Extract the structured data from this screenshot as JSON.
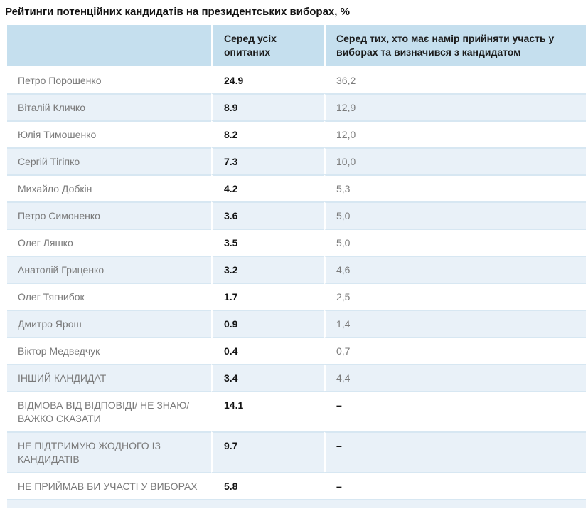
{
  "page": {
    "title": "Рейтинги потенційних кандидатів на президентських виборах, %"
  },
  "chart_data": {
    "type": "table",
    "title": "Рейтинги потенційних кандидатів на президентських виборах, %",
    "columns": [
      "",
      "Серед усіх опитаних",
      "Серед тих, хто має намір прийняти участь у виборах та визначився з кандидатом"
    ],
    "rows": [
      [
        "Петро Порошенко",
        "24.9",
        "36,2"
      ],
      [
        "Віталій Кличко",
        "8.9",
        "12,9"
      ],
      [
        "Юлія Тимошенко",
        "8.2",
        "12,0"
      ],
      [
        "Сергій Тігіпко",
        "7.3",
        "10,0"
      ],
      [
        "Михайло Добкін",
        "4.2",
        "5,3"
      ],
      [
        "Петро Симоненко",
        "3.6",
        "5,0"
      ],
      [
        "Олег Ляшко",
        "3.5",
        "5,0"
      ],
      [
        "Анатолій Гриценко",
        "3.2",
        "4,6"
      ],
      [
        "Олег Тягнибок",
        "1.7",
        "2,5"
      ],
      [
        "Дмитро Ярош",
        "0.9",
        "1,4"
      ],
      [
        "Віктор Медведчук",
        "0.4",
        "0,7"
      ],
      [
        "ІНШИЙ КАНДИДАТ",
        "3.4",
        "4,4"
      ],
      [
        "ВІДМОВА ВІД ВІДПОВІДІ/ НЕ ЗНАЮ/ ВАЖКО СКАЗАТИ",
        "14.1",
        "–"
      ],
      [
        "НЕ ПІДТРИМУЮ ЖОДНОГО ІЗ КАНДИДАТІВ",
        "9.7",
        "–"
      ],
      [
        "НЕ ПРИЙМАВ БИ УЧАСТІ У ВИБОРАХ",
        "5.8",
        "–"
      ]
    ],
    "layout": {
      "legend": "none",
      "grid": "row-separators",
      "row_striping": "white / light-blue alternating",
      "value_style_col2": "bold, dot decimal separator",
      "value_style_col3": "regular gray, comma decimal separator",
      "missing_value_symbol": "–"
    }
  },
  "colors": {
    "header_bg": "#c5dfee",
    "row_alt_bg": "#e9f1f8",
    "separator": "#d7e7f2",
    "text_gray": "#7a7a7a",
    "text_dark": "#141414",
    "title_color": "#121212"
  }
}
